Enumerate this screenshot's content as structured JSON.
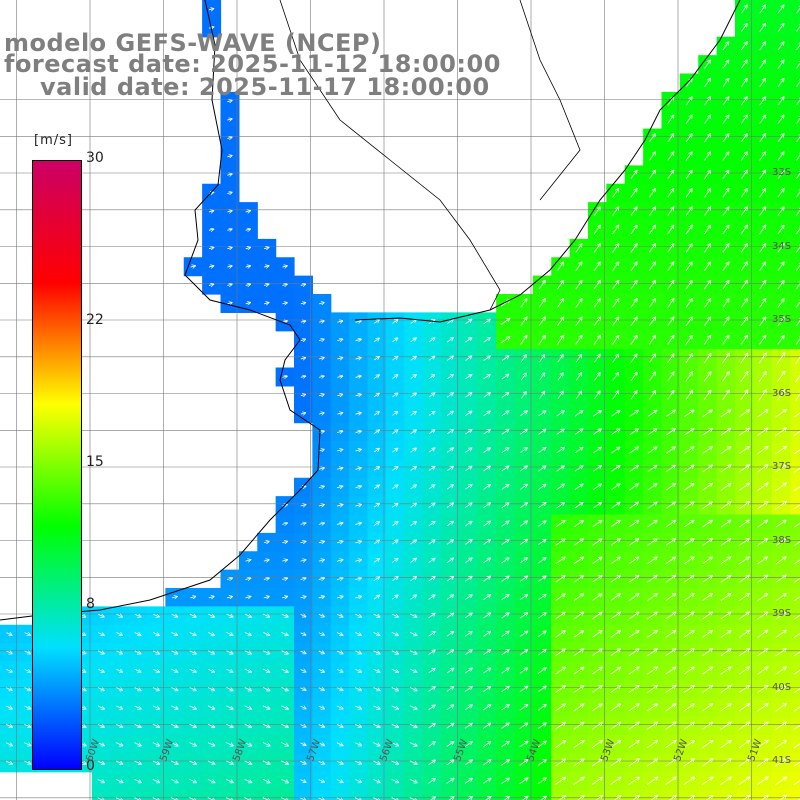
{
  "header": {
    "model": "modelo GEFS-WAVE (NCEP)",
    "forecast": "forecast date: 2025-11-12 18:00:00",
    "valid": "valid date: 2025-11-17 18:00:00"
  },
  "colorbar": {
    "unit": "[m/s]",
    "min": 0,
    "max": 30,
    "ticks": [
      "30",
      "22",
      "15",
      "8",
      "0"
    ],
    "tick_values": [
      30,
      22,
      15,
      8,
      0
    ],
    "stops": [
      "#0000ff",
      "#00e0ff",
      "#00ff00",
      "#ffff00",
      "#ff0000",
      "#cc0066"
    ]
  },
  "lat_labels": [
    {
      "text": "33S",
      "value": -33
    },
    {
      "text": "34S",
      "value": -34
    },
    {
      "text": "35S",
      "value": -35
    },
    {
      "text": "36S",
      "value": -36
    },
    {
      "text": "37S",
      "value": -37
    },
    {
      "text": "38S",
      "value": -38
    },
    {
      "text": "39S",
      "value": -39
    },
    {
      "text": "40S",
      "value": -40
    },
    {
      "text": "41S",
      "value": -41
    }
  ],
  "lon_labels": [
    {
      "text": "60W",
      "value": -60
    },
    {
      "text": "59W",
      "value": -59
    },
    {
      "text": "58W",
      "value": -58
    },
    {
      "text": "57W",
      "value": -57
    },
    {
      "text": "56W",
      "value": -56
    },
    {
      "text": "55W",
      "value": -55
    },
    {
      "text": "54W",
      "value": -54
    },
    {
      "text": "53W",
      "value": -53
    },
    {
      "text": "52W",
      "value": -52
    },
    {
      "text": "51W",
      "value": -51
    }
  ]
}
